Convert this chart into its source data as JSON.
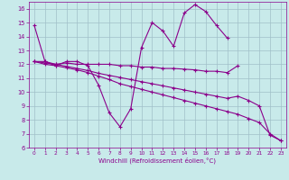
{
  "xlabel": "Windchill (Refroidissement éolien,°C)",
  "x": [
    0,
    1,
    2,
    3,
    4,
    5,
    6,
    7,
    8,
    9,
    10,
    11,
    12,
    13,
    14,
    15,
    16,
    17,
    18,
    19,
    20,
    21,
    22,
    23
  ],
  "line1": [
    14.8,
    12.2,
    11.9,
    12.2,
    12.2,
    11.9,
    10.5,
    8.5,
    7.5,
    8.8,
    13.2,
    15.0,
    14.4,
    13.3,
    15.7,
    16.3,
    15.8,
    14.8,
    13.9,
    null,
    null,
    null,
    null,
    null
  ],
  "line2": [
    12.2,
    12.2,
    12.0,
    12.1,
    12.0,
    12.0,
    12.0,
    12.0,
    11.9,
    11.9,
    11.8,
    11.8,
    11.7,
    11.7,
    11.65,
    11.6,
    11.5,
    11.5,
    11.4,
    11.9,
    null,
    null,
    null,
    null
  ],
  "line3": [
    12.2,
    12.0,
    11.9,
    11.75,
    11.6,
    11.4,
    11.15,
    10.9,
    10.6,
    10.4,
    10.2,
    10.0,
    9.8,
    9.6,
    9.4,
    9.2,
    9.0,
    8.8,
    8.6,
    8.4,
    8.1,
    7.8,
    7.0,
    6.5
  ],
  "line4": [
    12.2,
    12.1,
    12.0,
    11.85,
    11.7,
    11.55,
    11.35,
    11.2,
    11.05,
    10.9,
    10.75,
    10.6,
    10.45,
    10.3,
    10.15,
    10.0,
    9.85,
    9.7,
    9.55,
    9.7,
    9.4,
    9.0,
    6.9,
    6.5
  ],
  "ylim": [
    6,
    16.5
  ],
  "xlim": [
    -0.5,
    23.5
  ],
  "yticks": [
    6,
    7,
    8,
    9,
    10,
    11,
    12,
    13,
    14,
    15,
    16
  ],
  "xticks": [
    0,
    1,
    2,
    3,
    4,
    5,
    6,
    7,
    8,
    9,
    10,
    11,
    12,
    13,
    14,
    15,
    16,
    17,
    18,
    19,
    20,
    21,
    22,
    23
  ],
  "line_color": "#8b008b",
  "bg_color": "#c8eaea",
  "grid_color": "#a0c0c8",
  "spine_color": "#8b008b"
}
